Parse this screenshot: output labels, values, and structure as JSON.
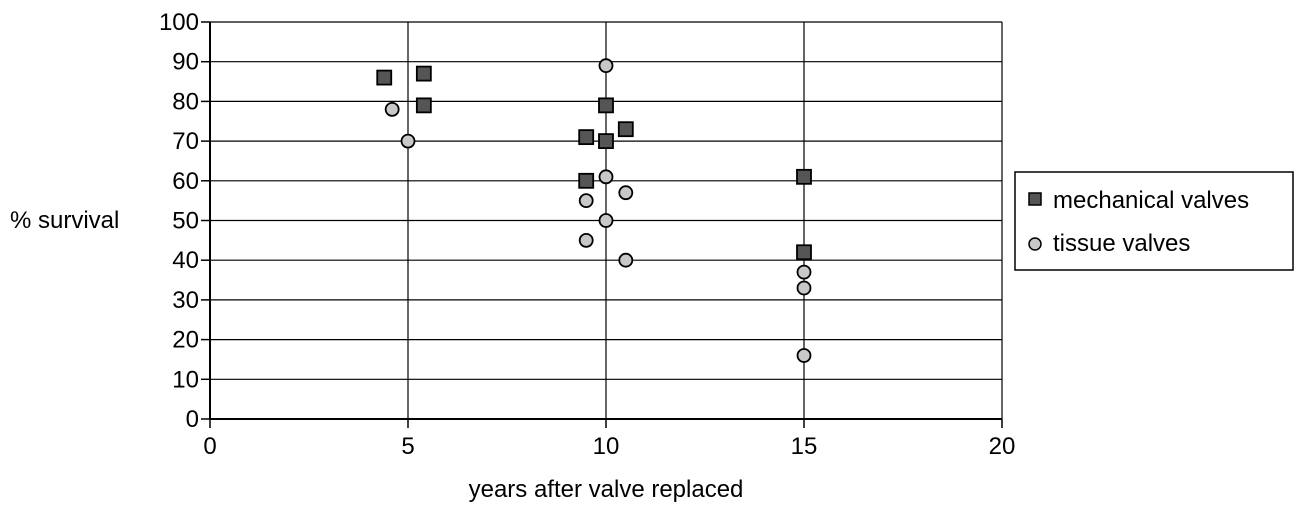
{
  "chart_data": {
    "type": "scatter",
    "title": "",
    "xlabel": "years after valve replaced",
    "ylabel": "% survival",
    "xlim": [
      0,
      20
    ],
    "ylim": [
      0,
      100
    ],
    "x_ticks": [
      0,
      5,
      10,
      15,
      20
    ],
    "y_ticks": [
      0,
      10,
      20,
      30,
      40,
      50,
      60,
      70,
      80,
      90,
      100
    ],
    "grid": "horizontal and vertical major gridlines",
    "legend_position": "right",
    "series": [
      {
        "name": "mechanical valves",
        "marker": "square",
        "color": "#555555",
        "points": [
          {
            "x": 4.4,
            "y": 86
          },
          {
            "x": 5.4,
            "y": 87
          },
          {
            "x": 5.4,
            "y": 79
          },
          {
            "x": 9.5,
            "y": 71
          },
          {
            "x": 9.5,
            "y": 60
          },
          {
            "x": 10.0,
            "y": 79
          },
          {
            "x": 10.0,
            "y": 70
          },
          {
            "x": 10.5,
            "y": 73
          },
          {
            "x": 15.0,
            "y": 61
          },
          {
            "x": 15.0,
            "y": 42
          }
        ]
      },
      {
        "name": "tissue valves",
        "marker": "circle",
        "color": "#c8c8c8",
        "points": [
          {
            "x": 4.6,
            "y": 78
          },
          {
            "x": 5.0,
            "y": 70
          },
          {
            "x": 9.5,
            "y": 55
          },
          {
            "x": 9.5,
            "y": 45
          },
          {
            "x": 10.0,
            "y": 89
          },
          {
            "x": 10.0,
            "y": 61
          },
          {
            "x": 10.0,
            "y": 50
          },
          {
            "x": 10.5,
            "y": 57
          },
          {
            "x": 10.5,
            "y": 40
          },
          {
            "x": 15.0,
            "y": 37
          },
          {
            "x": 15.0,
            "y": 33
          },
          {
            "x": 15.0,
            "y": 16
          }
        ]
      }
    ]
  }
}
